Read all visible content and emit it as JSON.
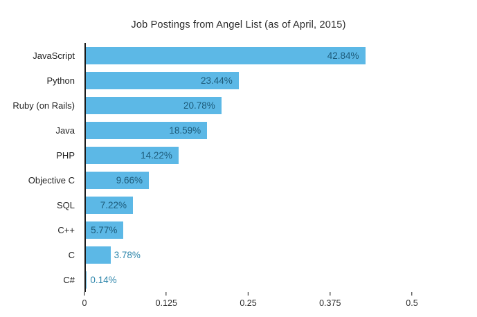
{
  "title": "Job Postings from Angel List (as of April, 2015)",
  "chart_data": {
    "type": "bar",
    "orientation": "horizontal",
    "title": "Job Postings from Angel List (as of April, 2015)",
    "categories": [
      "JavaScript",
      "Python",
      "Ruby (on Rails)",
      "Java",
      "PHP",
      "Objective C",
      "SQL",
      "C++",
      "C",
      "C#"
    ],
    "values": [
      0.4284,
      0.2344,
      0.2078,
      0.1859,
      0.1422,
      0.0966,
      0.0722,
      0.0577,
      0.0378,
      0.0014
    ],
    "value_labels": [
      "42.84%",
      "23.44%",
      "20.78%",
      "18.59%",
      "14.22%",
      "9.66%",
      "7.22%",
      "5.77%",
      "3.78%",
      "0.14%"
    ],
    "x_ticks": [
      0,
      0.125,
      0.25,
      0.375,
      0.5
    ],
    "x_tick_labels": [
      "0",
      "0.125",
      "0.25",
      "0.375",
      "0.5"
    ],
    "xlim": [
      0,
      0.5
    ],
    "xlabel": "",
    "ylabel": "",
    "grid": false,
    "legend": false,
    "bar_color": "#5cb8e6",
    "label_color_inside": "#1d5b7a",
    "label_color_outside": "#2e86ab",
    "axis_color": "#1a1a1a"
  }
}
